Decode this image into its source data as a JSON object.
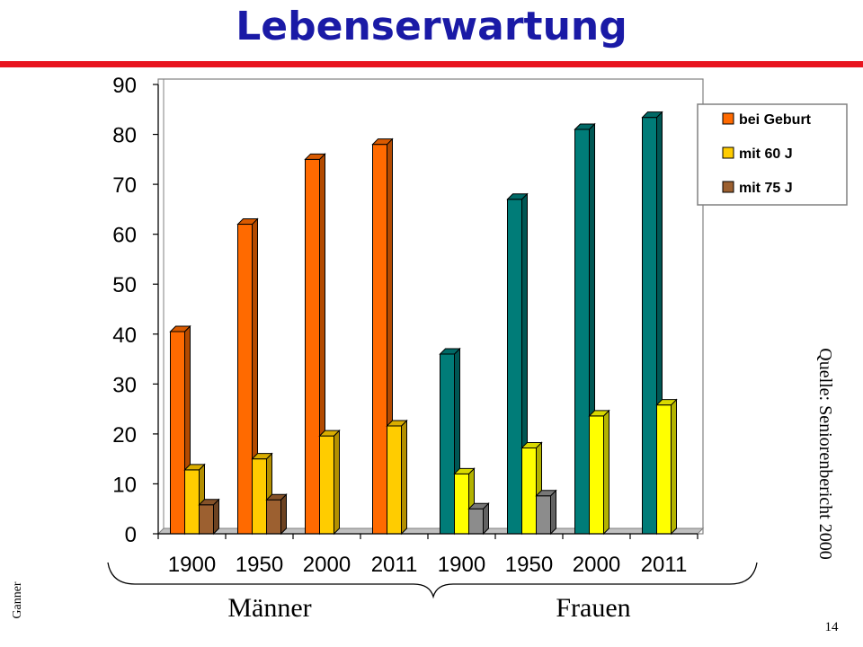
{
  "slide": {
    "title": "Lebenserwartung",
    "source": "Quelle: Seniorenbericht 2000",
    "author": "Ganner",
    "page_number": "14",
    "group_men": "Männer",
    "group_women": "Frauen"
  },
  "colors": {
    "title": "#1a1aa6",
    "rule": "#e8141e",
    "men_birth": "#ff6a00",
    "men_60": "#ffcc00",
    "men_75": "#9c6030",
    "women_birth": "#007c78",
    "women_60": "#ffff00",
    "women_75": "#8c8c8c"
  },
  "chart_data": {
    "type": "bar",
    "categories": [
      "1900",
      "1950",
      "2000",
      "2011",
      "1900",
      "1950",
      "2000",
      "2011"
    ],
    "groups": [
      {
        "label": "Männer",
        "categories": [
          0,
          1,
          2,
          3
        ]
      },
      {
        "label": "Frauen",
        "categories": [
          4,
          5,
          6,
          7
        ]
      }
    ],
    "series": [
      {
        "name": "bei Geburt",
        "values": [
          40.5,
          62,
          75,
          78,
          36,
          67,
          81,
          83.4
        ]
      },
      {
        "name": "mit 60 J",
        "values": [
          12.8,
          15,
          19.6,
          21.6,
          12,
          17.2,
          23.6,
          25.8
        ]
      },
      {
        "name": "mit 75 J",
        "values": [
          5.8,
          6.8,
          null,
          null,
          5,
          7.6,
          null,
          null
        ]
      }
    ],
    "ylim": [
      0,
      90
    ],
    "yticks": [
      "0",
      "10",
      "20",
      "30",
      "40",
      "50",
      "60",
      "70",
      "80",
      "90"
    ],
    "legend": [
      "bei Geburt",
      "mit 60 J",
      "mit 75 J"
    ],
    "legend_position": "top-right",
    "grid": false
  }
}
